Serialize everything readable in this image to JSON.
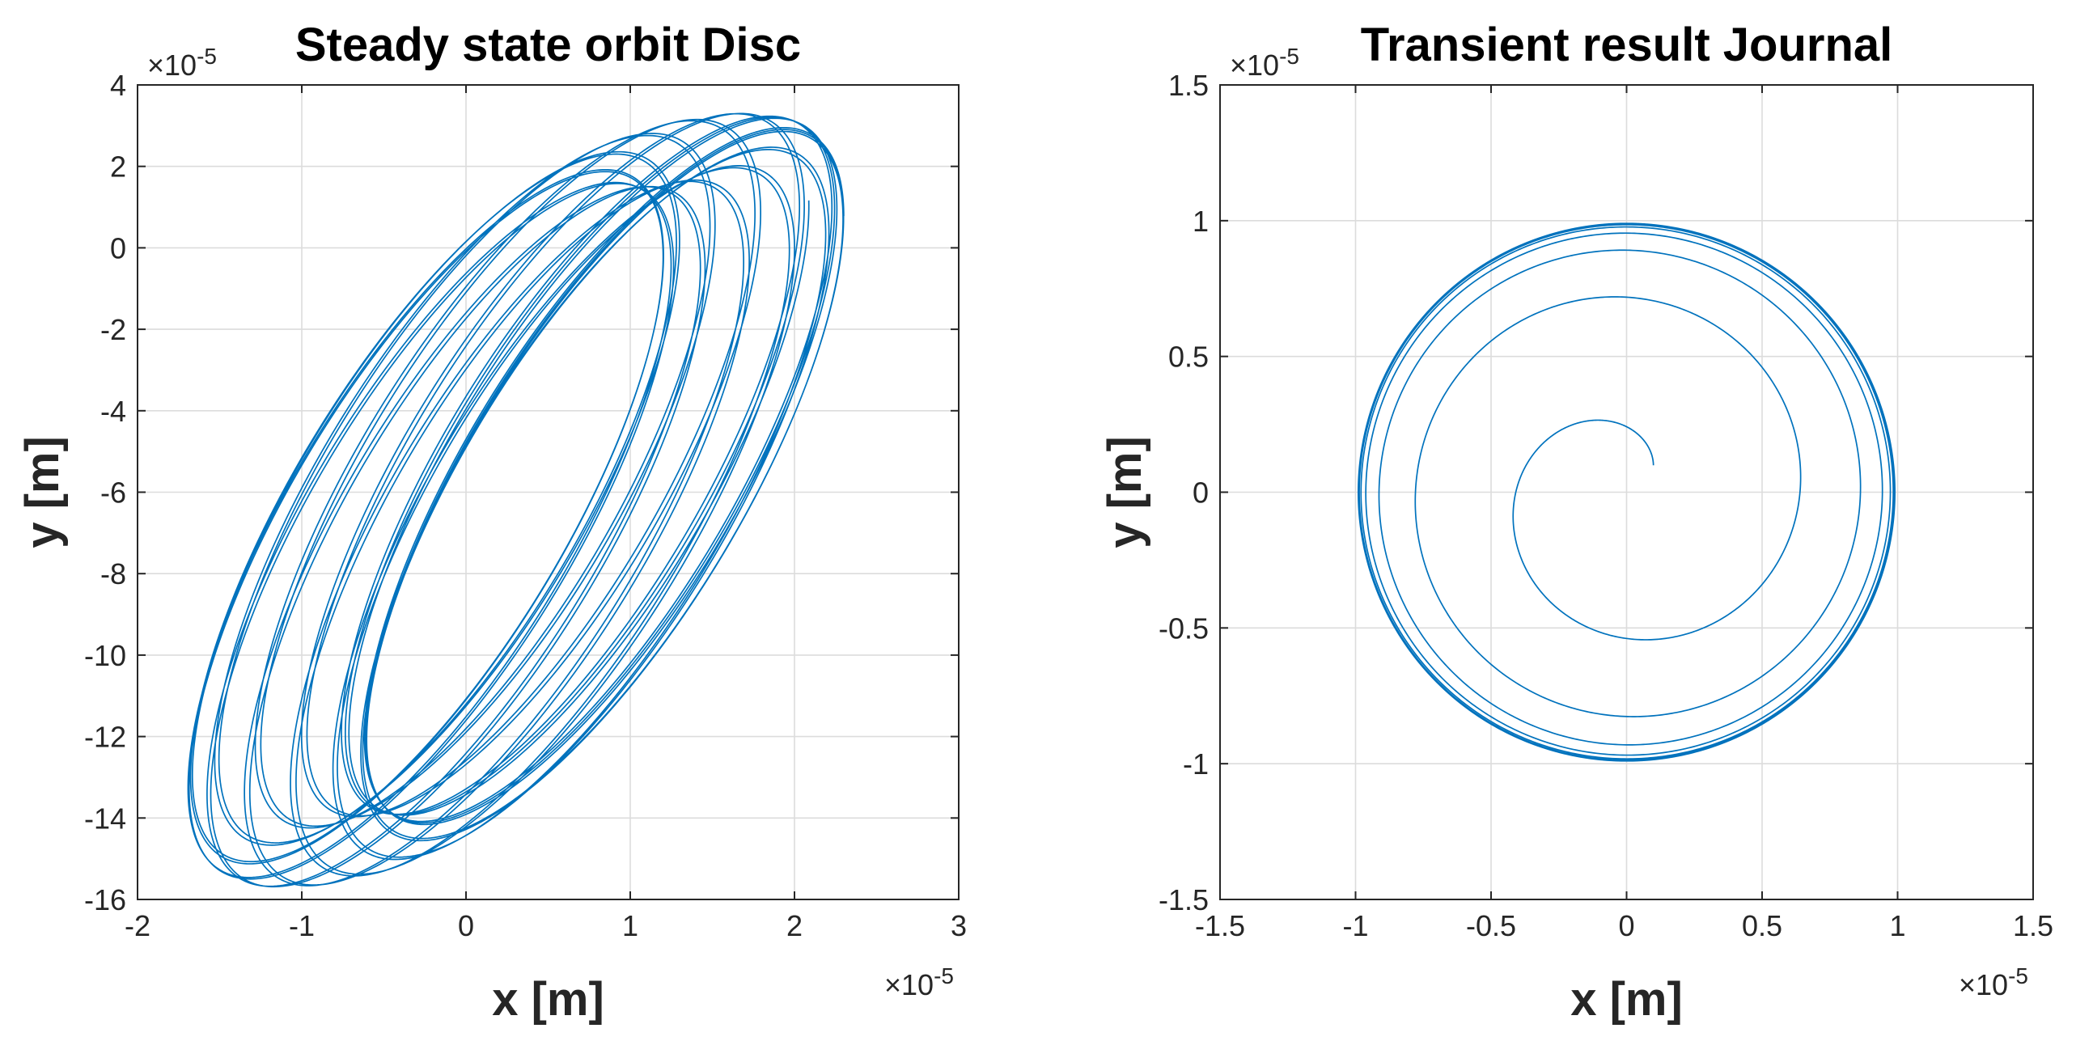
{
  "chart_data": [
    {
      "type": "line",
      "title": "Steady state orbit Disc",
      "xlabel": "x [m]",
      "ylabel": "y [m]",
      "x_exponent": "×10",
      "x_exponent_power": "-5",
      "y_exponent": "×10",
      "y_exponent_power": "-5",
      "xlim": [
        -2,
        3
      ],
      "ylim": [
        -16,
        4
      ],
      "x_ticks": [
        -2,
        -1,
        0,
        1,
        2,
        3
      ],
      "x_tick_labels": [
        "-2",
        "-1",
        "0",
        "1",
        "2",
        "3"
      ],
      "y_ticks": [
        -16,
        -14,
        -12,
        -10,
        -8,
        -6,
        -4,
        -2,
        0,
        2,
        4
      ],
      "y_tick_labels": [
        "-16",
        "-14",
        "-12",
        "-10",
        "-8",
        "-6",
        "-4",
        "-2",
        "0",
        "2",
        "4"
      ],
      "grid": true,
      "color": "#0072bd",
      "series": [
        {
          "name": "disc orbit",
          "curve": "quasi-periodic tilted elliptical orbit",
          "center_x": 0.3,
          "center_y": -6.2,
          "x_amplitude_fast": 1.45,
          "y_amplitude_fast": 8.6,
          "phase_lag_rad": 0.72,
          "x_drift_amplitude": 0.55,
          "y_drift_amplitude": 0.9,
          "x_range": [
            -1.7,
            2.3
          ],
          "y_range": [
            -15.6,
            2.3
          ]
        }
      ]
    },
    {
      "type": "line",
      "title": "Transient result Journal",
      "xlabel": "x [m]",
      "ylabel": "y [m]",
      "x_exponent": "×10",
      "x_exponent_power": "-5",
      "y_exponent": "×10",
      "y_exponent_power": "-5",
      "xlim": [
        -1.5,
        1.5
      ],
      "ylim": [
        -1.5,
        1.5
      ],
      "x_ticks": [
        -1.5,
        -1,
        -0.5,
        0,
        0.5,
        1,
        1.5
      ],
      "x_tick_labels": [
        "-1.5",
        "-1",
        "-0.5",
        "0",
        "0.5",
        "1",
        "1.5"
      ],
      "y_ticks": [
        -1.5,
        -1,
        -0.5,
        0,
        0.5,
        1,
        1.5
      ],
      "y_tick_labels": [
        "-1.5",
        "-1",
        "-0.5",
        "0",
        "0.5",
        "1",
        "1.5"
      ],
      "grid": true,
      "color": "#0072bd",
      "series": [
        {
          "name": "journal transient",
          "curve": "outward spiral converging to circular orbit",
          "start_x": 0.1,
          "start_y": 0.1,
          "start_radius": 0.14,
          "limit_radius": 0.99,
          "turns_to_converge": 4
        }
      ]
    }
  ]
}
